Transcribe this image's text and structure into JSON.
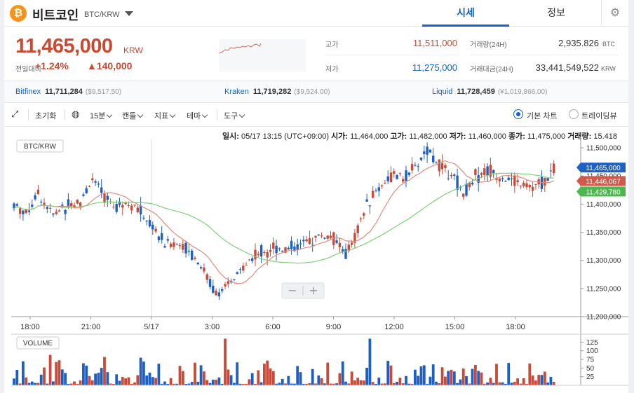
{
  "header": {
    "coin_icon": "bitcoin-icon",
    "coin_symbol": "₿",
    "coin_name": "비트코인",
    "pair": "BTC/KRW",
    "tabs": [
      {
        "label": "시세",
        "active": true
      },
      {
        "label": "정보",
        "active": false
      }
    ],
    "settings_icon": "gear-icon"
  },
  "summary": {
    "price": "11,465,000",
    "price_unit": "KRW",
    "change_label": "전일대비",
    "change_rate": "+1.24%",
    "change_amount": "▲140,000",
    "high_label": "고가",
    "high_value": "11,511,000",
    "low_label": "저가",
    "low_value": "11,275,000",
    "volume_label": "거래량(24H)",
    "volume_value": "2,935.826",
    "volume_unit": "BTC",
    "amount_label": "거래대금(24H)",
    "amount_value": "33,441,549,522",
    "amount_unit": "KRW"
  },
  "exchanges": [
    {
      "name": "Bitfinex",
      "price": "11,711,284",
      "sub": "($9,517.50)"
    },
    {
      "name": "Kraken",
      "price": "11,719,282",
      "sub": "($9,524.00)"
    },
    {
      "name": "Liquid",
      "price": "11,728,459",
      "sub": "(¥1,019,866.00)"
    }
  ],
  "toolbar": {
    "expand_icon": "expand-icon",
    "reset": "초기화",
    "globe_icon": "globe-icon",
    "interval": "15분",
    "candle": "캔들",
    "indicator": "지표",
    "theme": "테마",
    "tools": "도구",
    "basic_chart": "기본 차트",
    "tradingview": "트레이딩뷰"
  },
  "ohlc": {
    "date_label": "일시:",
    "date_value": "05/17 13:15 (UTC+09:00)",
    "open_label": "시가:",
    "open_value": "11,464,000",
    "high_label": "고가:",
    "high_value": "11,482,000",
    "low_label": "저가:",
    "low_value": "11,460,000",
    "close_label": "종가:",
    "close_value": "11,475,000",
    "vol_label": "거래량:",
    "vol_value": "15.418"
  },
  "chart_data": {
    "type": "candlestick",
    "legend_main": "BTC/KRW",
    "legend_volume": "VOLUME",
    "y_ticks": [
      "11,500,000",
      "11,450,000",
      "11,400,000",
      "11,350,000",
      "11,300,000",
      "11,250,000",
      "11,200,000"
    ],
    "y_tick_values": [
      11500000,
      11450000,
      11400000,
      11350000,
      11300000,
      11250000,
      11200000
    ],
    "ylim": [
      11200000,
      11515000
    ],
    "x_ticks": [
      "18:00",
      "21:00",
      "5/17",
      "3:00",
      "6:00",
      "9:00",
      "12:00",
      "15:00",
      "18:00"
    ],
    "price_badges": [
      {
        "value": "11,465,000",
        "color": "#1f62c6"
      },
      {
        "value": "11,446,067",
        "color": "#d05a4a"
      },
      {
        "value": "11,429,780",
        "color": "#4cb84c"
      }
    ],
    "vol_ticks": [
      "125",
      "100",
      "75",
      "50",
      "25"
    ],
    "vol_tick_values": [
      125,
      100,
      75,
      50,
      25
    ],
    "vol_max": 140,
    "colors": {
      "up": "#c84a3a",
      "down": "#1f5fc0",
      "ma_short": "#e38a7c",
      "ma_long": "#7fd07a"
    },
    "zoom_minus": "−",
    "zoom_plus": "+"
  }
}
